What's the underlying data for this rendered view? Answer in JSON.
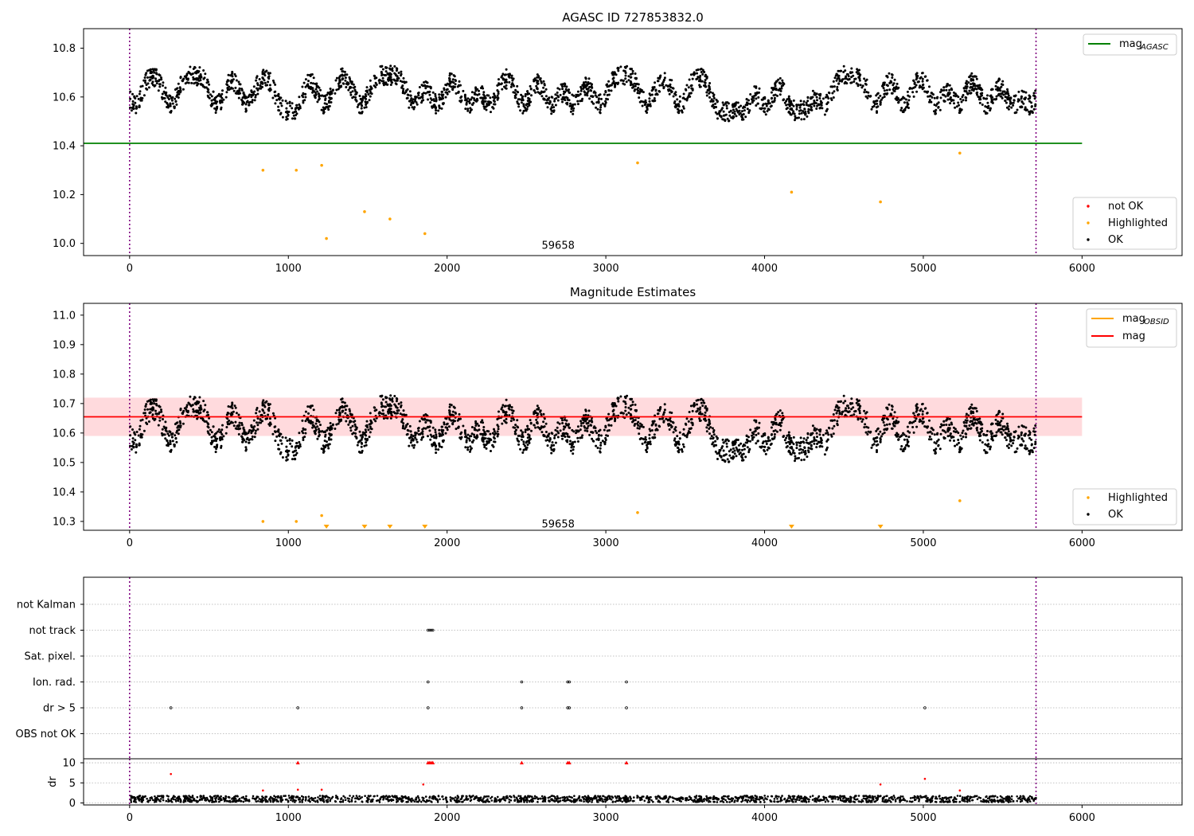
{
  "chart_data": [
    {
      "type": "scatter",
      "title": "AGASC ID 727853832.0",
      "xlim": [
        -290,
        6630
      ],
      "ylim": [
        9.95,
        10.88
      ],
      "xticks": [
        "0",
        "1000",
        "2000",
        "3000",
        "4000",
        "5000",
        "6000"
      ],
      "yticks": [
        "10.0",
        "10.2",
        "10.4",
        "10.6",
        "10.8"
      ],
      "vlines": [
        0,
        5710
      ],
      "annotation": {
        "text": "59658",
        "x": 2850,
        "y": 9.99
      },
      "series": [
        {
          "name": "mag_AGASC",
          "type": "hline",
          "y": 10.41,
          "x_range": [
            -290,
            6000
          ],
          "color": "#008000"
        },
        {
          "name": "OK",
          "type": "scatter",
          "color": "#000000",
          "x_range": [
            0,
            5710
          ],
          "baseline": 10.68,
          "dips_to": 10.52
        },
        {
          "name": "Highlighted",
          "type": "scatter",
          "color": "#ffa500",
          "points": [
            [
              840,
              10.3
            ],
            [
              1050,
              10.3
            ],
            [
              1210,
              10.32
            ],
            [
              1240,
              10.02
            ],
            [
              1480,
              10.13
            ],
            [
              1640,
              10.1
            ],
            [
              1860,
              10.04
            ],
            [
              3200,
              10.33
            ],
            [
              4170,
              10.21
            ],
            [
              4730,
              10.17
            ],
            [
              5230,
              10.37
            ]
          ]
        },
        {
          "name": "not OK",
          "type": "scatter",
          "color": "#ff0000",
          "points": []
        }
      ],
      "legend_top": {
        "position": "top-right",
        "entries": [
          {
            "main": "mag",
            "sub": "AGASC",
            "color": "#008000"
          }
        ]
      },
      "legend_bottom": {
        "position": "bottom-right",
        "entries": [
          {
            "label": "not OK",
            "color": "#ff0000"
          },
          {
            "label": "Highlighted",
            "color": "#ffa500"
          },
          {
            "label": "OK",
            "color": "#000000"
          }
        ]
      }
    },
    {
      "type": "scatter",
      "title": "Magnitude Estimates",
      "xlim": [
        -290,
        6630
      ],
      "ylim": [
        10.27,
        11.04
      ],
      "xticks": [
        "0",
        "1000",
        "2000",
        "3000",
        "4000",
        "5000",
        "6000"
      ],
      "yticks": [
        "10.3",
        "10.4",
        "10.5",
        "10.6",
        "10.7",
        "10.8",
        "10.9",
        "11.0"
      ],
      "vlines": [
        0,
        5710
      ],
      "annotation": {
        "text": "59658",
        "x": 2850,
        "y": 10.29
      },
      "band": {
        "y0": 10.59,
        "y1": 10.72,
        "x_range": [
          -290,
          6000
        ],
        "color": "#ffcdd2"
      },
      "series": [
        {
          "name": "mag",
          "type": "hline",
          "y": 10.655,
          "x_range": [
            -290,
            6000
          ],
          "color": "#ff0000"
        },
        {
          "name": "mag_OBSID",
          "type": "line",
          "color": "#ffa500"
        },
        {
          "name": "OK",
          "type": "scatter",
          "color": "#000000",
          "x_range": [
            0,
            5710
          ],
          "baseline": 10.68,
          "dips_to": 10.52
        },
        {
          "name": "Highlighted",
          "type": "scatter",
          "color": "#ffa500",
          "points": [
            [
              840,
              10.3
            ],
            [
              1050,
              10.3
            ],
            [
              1210,
              10.32
            ],
            [
              3200,
              10.33
            ],
            [
              5230,
              10.37
            ]
          ],
          "clipped": [
            1240,
            1480,
            1640,
            1860,
            4170,
            4730
          ]
        }
      ],
      "legend_top": {
        "position": "top-right",
        "entries": [
          {
            "main": "mag",
            "sub": "OBSID",
            "color": "#ffa500"
          },
          {
            "main": "mag",
            "sub": "",
            "color": "#ff0000"
          }
        ]
      },
      "legend_bottom": {
        "position": "bottom-right",
        "entries": [
          {
            "label": "Highlighted",
            "color": "#ffa500"
          },
          {
            "label": "OK",
            "color": "#000000"
          }
        ]
      }
    },
    {
      "type": "scatter",
      "title": "",
      "xlim": [
        -290,
        6630
      ],
      "xticks": [
        "0",
        "1000",
        "2000",
        "3000",
        "4000",
        "5000",
        "6000"
      ],
      "categories": [
        "not Kalman",
        "not track",
        "Sat. pixel.",
        "Ion. rad.",
        "dr > 5",
        "OBS not OK"
      ],
      "vlines": [
        0,
        5710
      ],
      "flags": {
        "not track": [
          1880,
          1890,
          1900,
          1910
        ],
        "Ion. rad.": [
          1880,
          2470,
          2760,
          2770,
          3130
        ],
        "dr > 5": [
          260,
          1060,
          1880,
          2470,
          2760,
          2770,
          3130,
          5010
        ]
      },
      "dr_panel": {
        "ylabel": "dr",
        "ylim": [
          -0.5,
          11
        ],
        "yticks": [
          "0",
          "5",
          "10"
        ],
        "threshold": 10,
        "baseline_series": {
          "color": "#000000",
          "x_range": [
            0,
            5710
          ],
          "typical": 1.0
        },
        "outliers": [
          [
            260,
            7.2
          ],
          [
            840,
            3.1
          ],
          [
            1060,
            3.3
          ],
          [
            1210,
            3.3
          ],
          [
            1850,
            4.6
          ],
          [
            4730,
            4.6
          ],
          [
            5010,
            6.0
          ],
          [
            5230,
            3.1
          ]
        ],
        "clipped": [
          1060,
          1880,
          1890,
          1900,
          1910,
          2470,
          2760,
          2770,
          3130
        ]
      }
    }
  ]
}
